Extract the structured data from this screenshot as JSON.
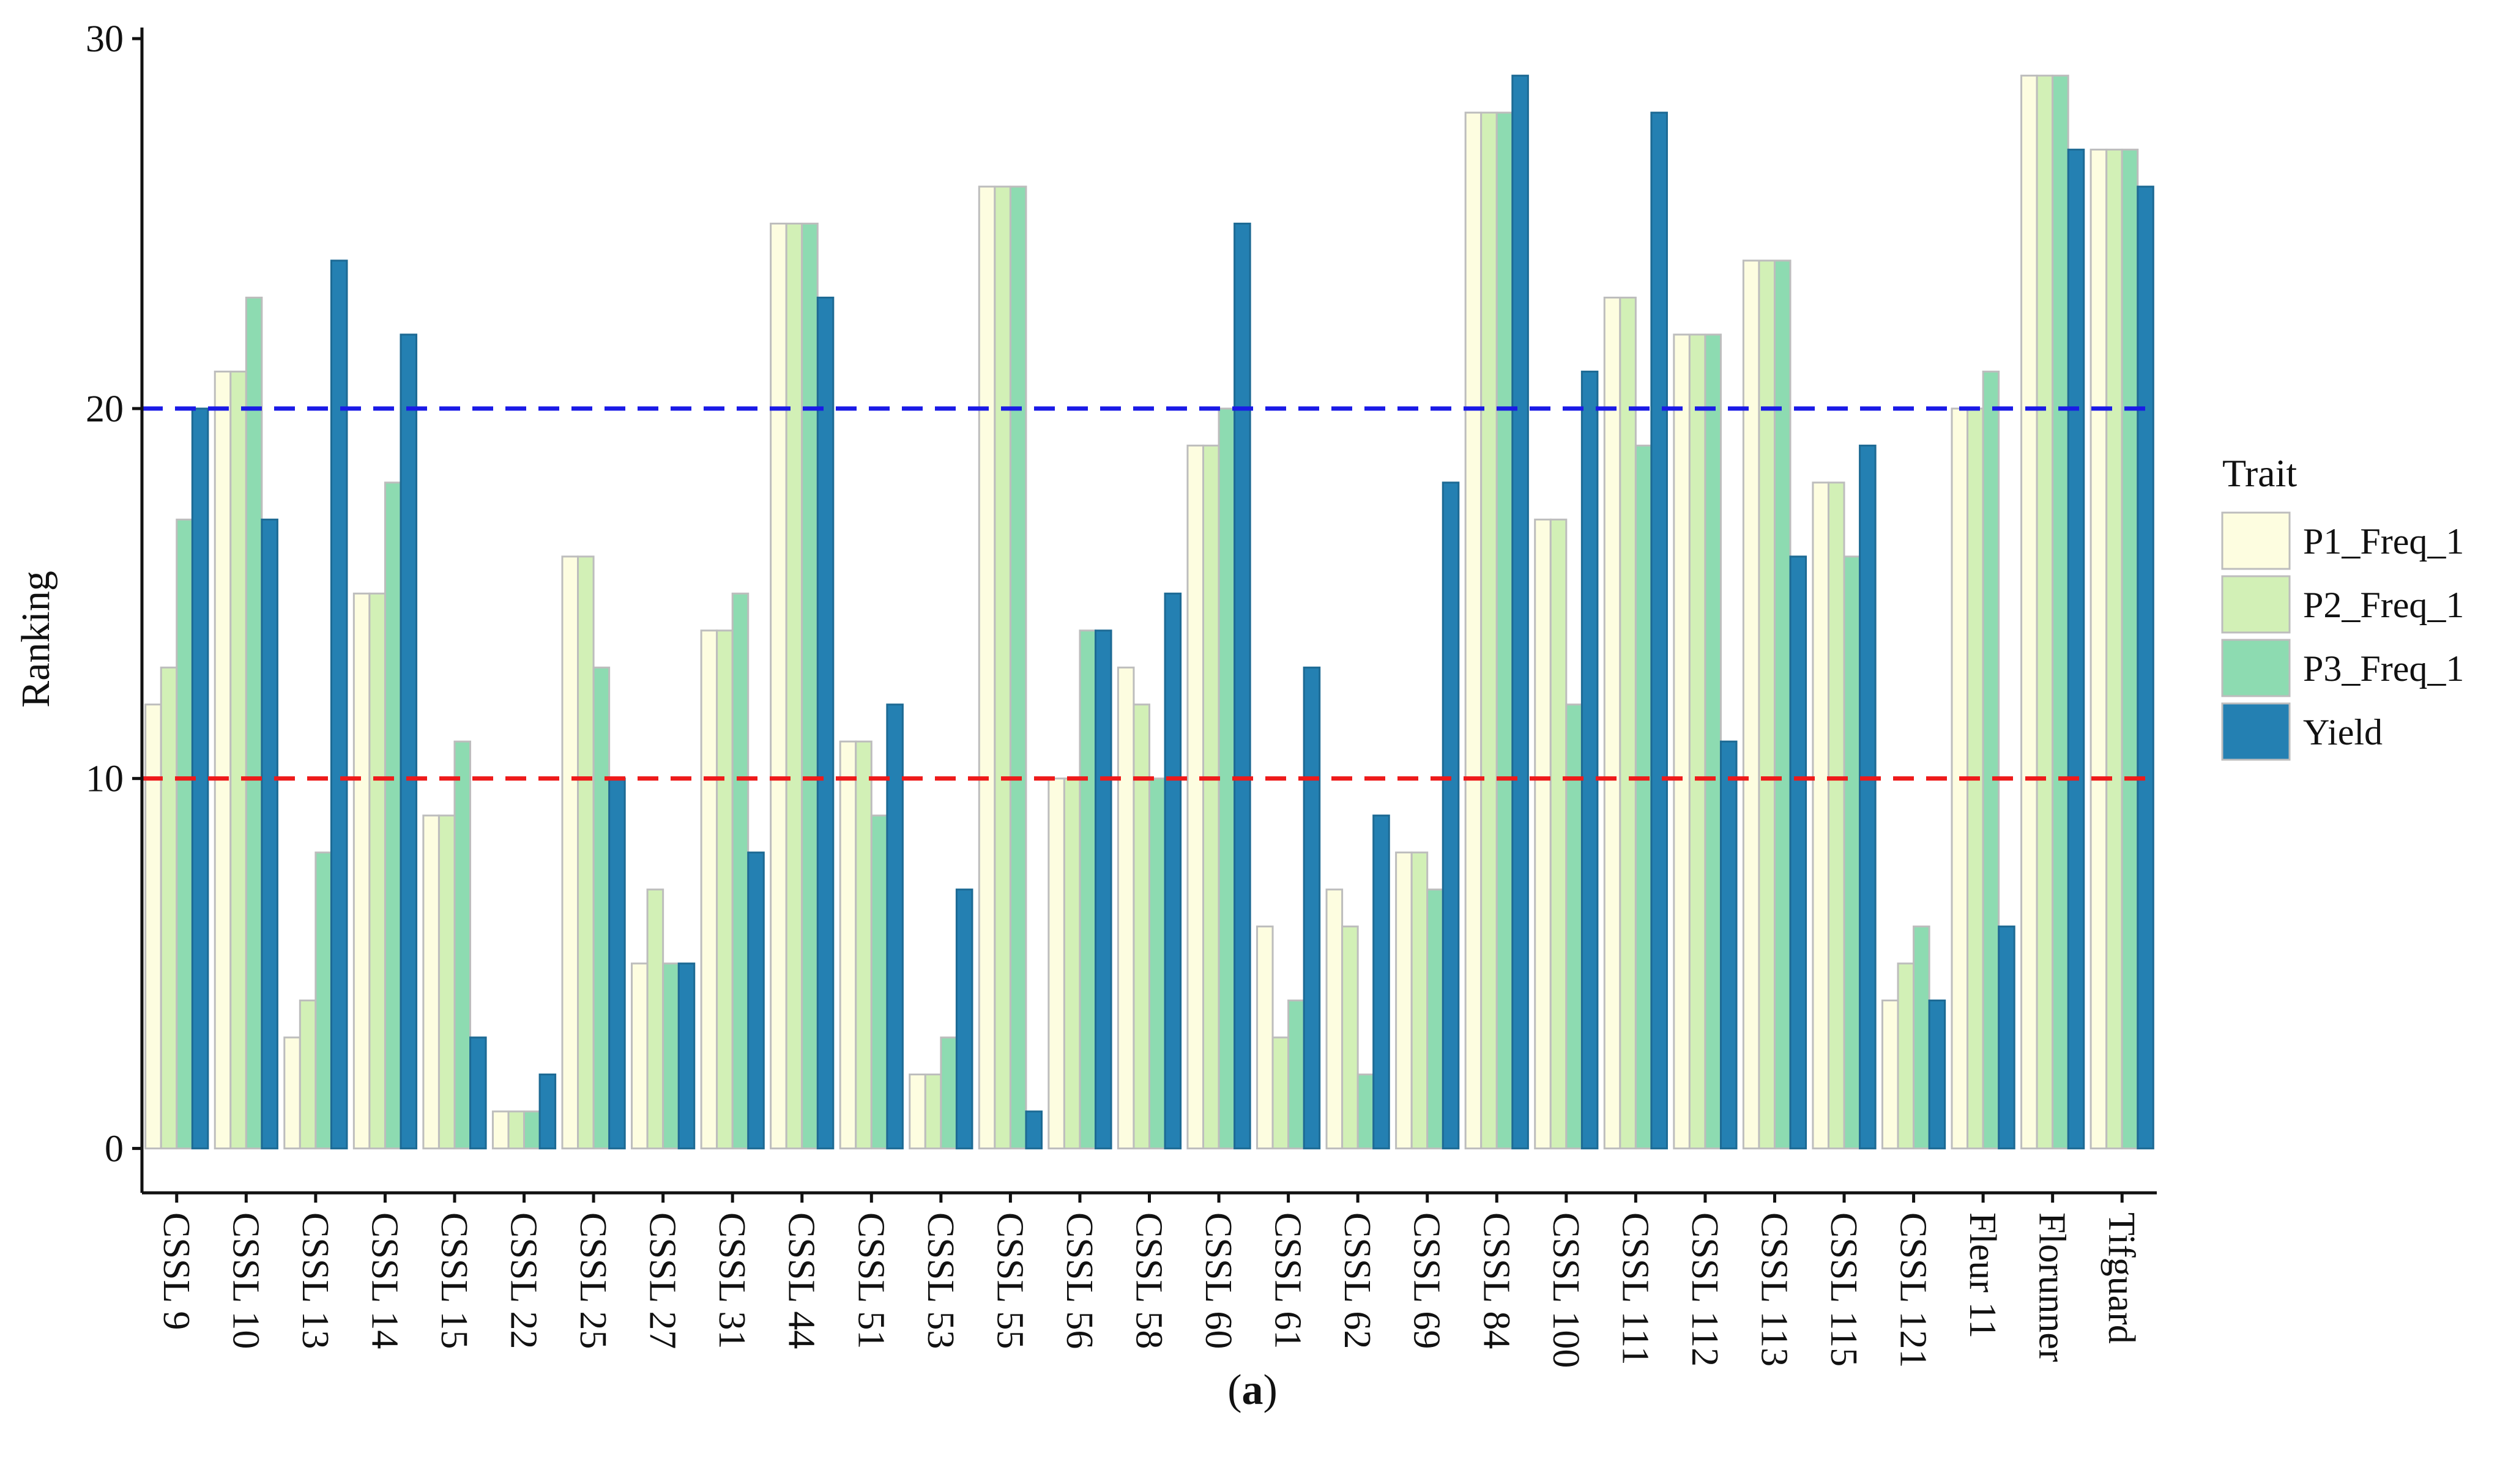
{
  "chart_data": {
    "type": "bar",
    "title": "",
    "xlabel": "",
    "ylabel": "Ranking",
    "caption_open": "(",
    "caption_letter": "a",
    "caption_close": ")",
    "ylim": [
      -1.2,
      30.3
    ],
    "yticks": [
      0,
      10,
      20,
      30
    ],
    "grid": false,
    "legend_position": "right",
    "legend_title": "Trait",
    "categories": [
      "CSSL 9",
      "CSSL 10",
      "CSSL 13",
      "CSSL 14",
      "CSSL 15",
      "CSSL 22",
      "CSSL 25",
      "CSSL 27",
      "CSSL 31",
      "CSSL 44",
      "CSSL 51",
      "CSSL 53",
      "CSSL 55",
      "CSSL 56",
      "CSSL 58",
      "CSSL 60",
      "CSSL 61",
      "CSSL 62",
      "CSSL 69",
      "CSSL 84",
      "CSSL 100",
      "CSSL 111",
      "CSSL 112",
      "CSSL 113",
      "CSSL 115",
      "CSSL 121",
      "Fleur 11",
      "Florunner",
      "Tifguard"
    ],
    "series": [
      {
        "name": "P1_Freq_1",
        "color": "#fdfde0",
        "stroke": "#bdbdbd",
        "values": [
          12,
          21,
          3,
          15,
          9,
          1,
          16,
          5,
          14,
          25,
          11,
          2,
          26,
          10,
          13,
          19,
          6,
          7,
          8,
          28,
          17,
          23,
          22,
          24,
          18,
          4,
          20,
          29,
          27
        ]
      },
      {
        "name": "P2_Freq_1",
        "color": "#d2f0b6",
        "stroke": "#bdbdbd",
        "values": [
          13,
          21,
          4,
          15,
          9,
          1,
          16,
          7,
          14,
          25,
          11,
          2,
          26,
          10,
          12,
          19,
          3,
          6,
          8,
          28,
          17,
          23,
          22,
          24,
          18,
          5,
          20,
          29,
          27
        ]
      },
      {
        "name": "P3_Freq_1",
        "color": "#8ddbb1",
        "stroke": "#bdbdbd",
        "values": [
          17,
          23,
          8,
          18,
          11,
          1,
          13,
          5,
          15,
          25,
          9,
          3,
          26,
          14,
          10,
          20,
          4,
          2,
          7,
          28,
          12,
          19,
          22,
          24,
          16,
          6,
          21,
          29,
          27
        ]
      },
      {
        "name": "Yield",
        "color": "#2480b2",
        "stroke": "#1d6a94",
        "values": [
          20,
          17,
          24,
          22,
          3,
          2,
          10,
          5,
          8,
          23,
          12,
          7,
          1,
          14,
          15,
          25,
          13,
          9,
          18,
          29,
          21,
          28,
          11,
          16,
          19,
          4,
          6,
          27,
          26
        ]
      }
    ],
    "reference_lines": [
      {
        "y": 20,
        "color": "#1a1ae6",
        "style": "dashed"
      },
      {
        "y": 10,
        "color": "#ee1a1a",
        "style": "dashed"
      }
    ]
  }
}
